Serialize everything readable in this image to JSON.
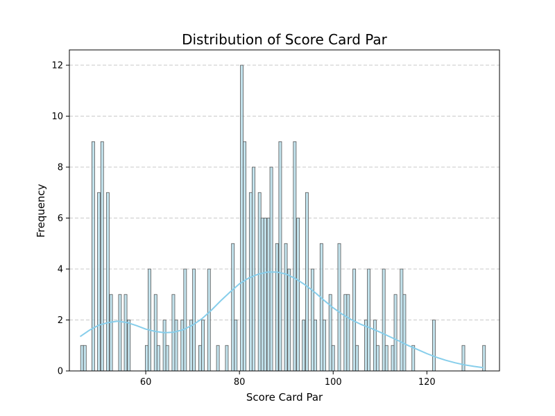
{
  "chart_data": {
    "type": "bar",
    "title": "Distribution of Score Card Par",
    "xlabel": "Score Card Par",
    "ylabel": "Frequency",
    "xlim": [
      43.7,
      135.5
    ],
    "ylim": [
      0,
      12.6
    ],
    "xticks": [
      60,
      80,
      100,
      120
    ],
    "yticks": [
      0,
      2,
      4,
      6,
      8,
      10,
      12
    ],
    "grid": "y-dashed",
    "bar_width": 0.6,
    "bar_color": "#add8e6",
    "kde_color": "#87ceeb",
    "bins": [
      {
        "x": 46.4,
        "count": 1
      },
      {
        "x": 47.0,
        "count": 1
      },
      {
        "x": 48.8,
        "count": 9
      },
      {
        "x": 50.0,
        "count": 7
      },
      {
        "x": 50.7,
        "count": 9
      },
      {
        "x": 51.9,
        "count": 7
      },
      {
        "x": 52.6,
        "count": 3
      },
      {
        "x": 54.5,
        "count": 3
      },
      {
        "x": 55.7,
        "count": 3
      },
      {
        "x": 56.4,
        "count": 2
      },
      {
        "x": 60.2,
        "count": 1
      },
      {
        "x": 60.8,
        "count": 4
      },
      {
        "x": 62.1,
        "count": 3
      },
      {
        "x": 62.7,
        "count": 1
      },
      {
        "x": 64.0,
        "count": 2
      },
      {
        "x": 64.6,
        "count": 1
      },
      {
        "x": 65.9,
        "count": 3
      },
      {
        "x": 66.5,
        "count": 2
      },
      {
        "x": 67.8,
        "count": 2
      },
      {
        "x": 68.4,
        "count": 4
      },
      {
        "x": 69.7,
        "count": 2
      },
      {
        "x": 70.3,
        "count": 4
      },
      {
        "x": 71.6,
        "count": 1
      },
      {
        "x": 72.2,
        "count": 2
      },
      {
        "x": 73.5,
        "count": 4
      },
      {
        "x": 75.4,
        "count": 1
      },
      {
        "x": 77.3,
        "count": 1
      },
      {
        "x": 78.6,
        "count": 5
      },
      {
        "x": 79.2,
        "count": 2
      },
      {
        "x": 80.5,
        "count": 12
      },
      {
        "x": 81.1,
        "count": 9
      },
      {
        "x": 82.4,
        "count": 7
      },
      {
        "x": 83.0,
        "count": 8
      },
      {
        "x": 84.3,
        "count": 7
      },
      {
        "x": 84.9,
        "count": 6
      },
      {
        "x": 85.5,
        "count": 6
      },
      {
        "x": 86.2,
        "count": 6
      },
      {
        "x": 86.8,
        "count": 8
      },
      {
        "x": 88.0,
        "count": 5
      },
      {
        "x": 88.7,
        "count": 9
      },
      {
        "x": 89.9,
        "count": 5
      },
      {
        "x": 90.6,
        "count": 4
      },
      {
        "x": 91.8,
        "count": 9
      },
      {
        "x": 92.5,
        "count": 6
      },
      {
        "x": 93.7,
        "count": 2
      },
      {
        "x": 94.4,
        "count": 7
      },
      {
        "x": 95.6,
        "count": 4
      },
      {
        "x": 96.2,
        "count": 2
      },
      {
        "x": 97.5,
        "count": 5
      },
      {
        "x": 98.1,
        "count": 2
      },
      {
        "x": 99.4,
        "count": 3
      },
      {
        "x": 100.0,
        "count": 1
      },
      {
        "x": 101.3,
        "count": 5
      },
      {
        "x": 102.6,
        "count": 3
      },
      {
        "x": 103.2,
        "count": 3
      },
      {
        "x": 104.5,
        "count": 4
      },
      {
        "x": 105.1,
        "count": 1
      },
      {
        "x": 107.0,
        "count": 2
      },
      {
        "x": 107.6,
        "count": 4
      },
      {
        "x": 108.9,
        "count": 2
      },
      {
        "x": 109.5,
        "count": 1
      },
      {
        "x": 110.8,
        "count": 4
      },
      {
        "x": 111.4,
        "count": 1
      },
      {
        "x": 112.7,
        "count": 1
      },
      {
        "x": 113.3,
        "count": 3
      },
      {
        "x": 114.6,
        "count": 4
      },
      {
        "x": 115.2,
        "count": 3
      },
      {
        "x": 117.1,
        "count": 1
      },
      {
        "x": 121.5,
        "count": 2
      },
      {
        "x": 127.8,
        "count": 1
      },
      {
        "x": 132.2,
        "count": 1
      }
    ],
    "kde": [
      [
        46.0,
        1.35
      ],
      [
        48.0,
        1.6
      ],
      [
        50.0,
        1.8
      ],
      [
        52.0,
        1.9
      ],
      [
        54.0,
        1.95
      ],
      [
        56.0,
        1.9
      ],
      [
        58.0,
        1.78
      ],
      [
        60.0,
        1.64
      ],
      [
        62.0,
        1.55
      ],
      [
        64.0,
        1.5
      ],
      [
        66.0,
        1.52
      ],
      [
        68.0,
        1.62
      ],
      [
        70.0,
        1.8
      ],
      [
        72.0,
        2.05
      ],
      [
        74.0,
        2.38
      ],
      [
        76.0,
        2.75
      ],
      [
        78.0,
        3.1
      ],
      [
        80.0,
        3.42
      ],
      [
        82.0,
        3.65
      ],
      [
        84.0,
        3.8
      ],
      [
        86.0,
        3.88
      ],
      [
        88.0,
        3.88
      ],
      [
        90.0,
        3.8
      ],
      [
        92.0,
        3.62
      ],
      [
        94.0,
        3.38
      ],
      [
        96.0,
        3.1
      ],
      [
        98.0,
        2.78
      ],
      [
        100.0,
        2.48
      ],
      [
        102.0,
        2.22
      ],
      [
        104.0,
        2.0
      ],
      [
        106.0,
        1.82
      ],
      [
        108.0,
        1.68
      ],
      [
        110.0,
        1.52
      ],
      [
        112.0,
        1.35
      ],
      [
        114.0,
        1.18
      ],
      [
        116.0,
        1.0
      ],
      [
        118.0,
        0.84
      ],
      [
        120.0,
        0.68
      ],
      [
        122.0,
        0.54
      ],
      [
        124.0,
        0.42
      ],
      [
        126.0,
        0.32
      ],
      [
        128.0,
        0.24
      ],
      [
        130.0,
        0.18
      ],
      [
        132.0,
        0.13
      ]
    ]
  }
}
